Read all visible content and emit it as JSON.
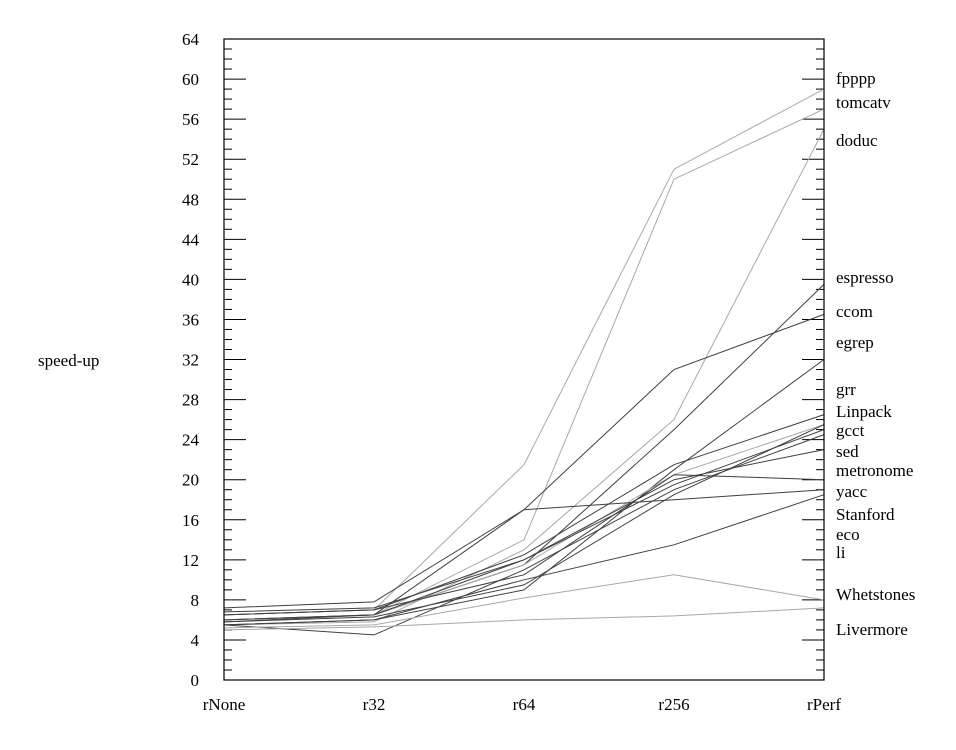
{
  "chart_data": {
    "type": "line",
    "title": "",
    "xlabel": "",
    "ylabel": "speed-up",
    "ylim": [
      0,
      64
    ],
    "y_ticks": [
      0,
      4,
      8,
      12,
      16,
      20,
      24,
      28,
      32,
      36,
      40,
      44,
      48,
      52,
      56,
      60,
      64
    ],
    "categories": [
      "rNone",
      "r32",
      "r64",
      "r256",
      "rPerf"
    ],
    "grid": false,
    "legend": "labels at right end of lines",
    "right_labels": [
      "fpppp",
      "tomcatv",
      "doduc",
      "espresso",
      "ccom",
      "egrep",
      "grr",
      "Linpack",
      "gcct",
      "sed",
      "metronome",
      "yacc",
      "Stanford",
      "eco",
      "li",
      "Whetstones",
      "Livermore"
    ],
    "series": [
      {
        "name": "fpppp",
        "values": [
          6.5,
          7.0,
          21.5,
          51.0,
          59.0
        ],
        "color": "#a8a8a8"
      },
      {
        "name": "tomcatv",
        "values": [
          6.0,
          6.5,
          14.0,
          50.0,
          57.0
        ],
        "color": "#a8a8a8"
      },
      {
        "name": "doduc",
        "values": [
          5.5,
          5.8,
          13.0,
          26.0,
          55.0
        ],
        "color": "#a8a8a8"
      },
      {
        "name": "espresso",
        "values": [
          6.0,
          6.5,
          11.5,
          25.0,
          39.5
        ],
        "color": "#404040"
      },
      {
        "name": "ccom",
        "values": [
          7.2,
          7.8,
          17.0,
          31.0,
          36.5
        ],
        "color": "#404040"
      },
      {
        "name": "egrep",
        "values": [
          5.5,
          6.0,
          9.0,
          21.0,
          32.0
        ],
        "color": "#404040"
      },
      {
        "name": "grr",
        "values": [
          6.5,
          7.0,
          12.5,
          21.5,
          26.5
        ],
        "color": "#404040"
      },
      {
        "name": "Linpack",
        "values": [
          6.0,
          6.5,
          11.5,
          20.5,
          25.5
        ],
        "color": "#a8a8a8"
      },
      {
        "name": "gcct",
        "values": [
          5.8,
          6.5,
          12.0,
          19.5,
          25.0
        ],
        "color": "#404040"
      },
      {
        "name": "sed",
        "values": [
          5.5,
          4.5,
          11.0,
          19.0,
          24.5
        ],
        "color": "#404040"
      },
      {
        "name": "metronome",
        "values": [
          6.8,
          7.2,
          12.0,
          20.0,
          23.0
        ],
        "color": "#404040"
      },
      {
        "name": "yacc",
        "values": [
          6.0,
          6.5,
          17.0,
          18.0,
          19.0
        ],
        "color": "#404040"
      },
      {
        "name": "Stanford",
        "values": [
          6.5,
          7.0,
          10.5,
          20.5,
          20.0
        ],
        "color": "#404040"
      },
      {
        "name": "eco",
        "values": [
          5.8,
          6.3,
          9.5,
          18.5,
          25.5
        ],
        "color": "#404040"
      },
      {
        "name": "li",
        "values": [
          5.5,
          6.0,
          10.0,
          13.5,
          18.5
        ],
        "color": "#404040"
      },
      {
        "name": "Whetstones",
        "values": [
          5.2,
          5.5,
          8.2,
          10.5,
          8.0
        ],
        "color": "#a8a8a8"
      },
      {
        "name": "Livermore",
        "values": [
          5.0,
          5.3,
          6.0,
          6.4,
          7.2
        ],
        "color": "#a8a8a8"
      }
    ]
  }
}
